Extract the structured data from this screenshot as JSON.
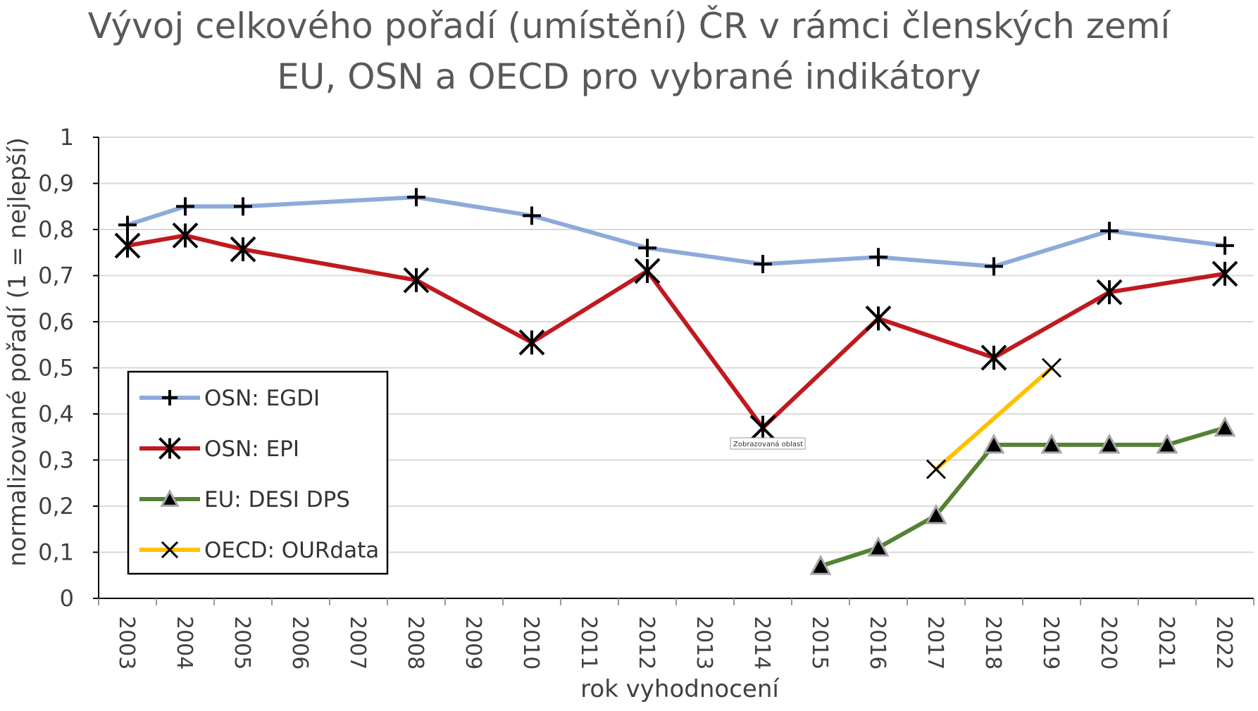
{
  "chart_data": {
    "type": "line",
    "title_line1": "Vývoj celkového pořadí (umístění) ČR v rámci členských zemí",
    "title_line2": "EU, OSN a OECD pro vybrané indikátory",
    "xlabel": "rok vyhodnocení",
    "ylabel": "normalizované pořadí (1 = nejlepší)",
    "categories": [
      "2003",
      "2004",
      "2005",
      "2006",
      "2007",
      "2008",
      "2009",
      "2010",
      "2011",
      "2012",
      "2013",
      "2014",
      "2015",
      "2016",
      "2017",
      "2018",
      "2019",
      "2020",
      "2021",
      "2022"
    ],
    "ylim": [
      0,
      1
    ],
    "yticks": [
      0,
      0.1,
      0.2,
      0.3,
      0.4,
      0.5,
      0.6,
      0.7,
      0.8,
      0.9,
      1
    ],
    "ytick_labels": [
      "0",
      "0,1",
      "0,2",
      "0,3",
      "0,4",
      "0,5",
      "0,6",
      "0,7",
      "0,8",
      "0,9",
      "1"
    ],
    "grid": true,
    "legend_position": "left",
    "series": [
      {
        "name": "OSN: EGDI",
        "color": "#8eaadb",
        "marker": "plus",
        "points": [
          [
            "2003",
            0.81
          ],
          [
            "2004",
            0.85
          ],
          [
            "2005",
            0.85
          ],
          [
            "2008",
            0.87
          ],
          [
            "2010",
            0.83
          ],
          [
            "2012",
            0.76
          ],
          [
            "2014",
            0.725
          ],
          [
            "2016",
            0.74
          ],
          [
            "2018",
            0.72
          ],
          [
            "2020",
            0.797
          ],
          [
            "2022",
            0.765
          ]
        ]
      },
      {
        "name": "OSN: EPI",
        "color": "#c0191f",
        "marker": "asterisk",
        "points": [
          [
            "2003",
            0.765
          ],
          [
            "2004",
            0.787
          ],
          [
            "2005",
            0.757
          ],
          [
            "2008",
            0.69
          ],
          [
            "2010",
            0.555
          ],
          [
            "2012",
            0.71
          ],
          [
            "2014",
            0.37
          ],
          [
            "2016",
            0.607
          ],
          [
            "2018",
            0.522
          ],
          [
            "2020",
            0.664
          ],
          [
            "2022",
            0.704
          ]
        ]
      },
      {
        "name": "EU: DESI DPS",
        "color": "#548235",
        "marker": "triangle",
        "points": [
          [
            "2015",
            0.07
          ],
          [
            "2016",
            0.11
          ],
          [
            "2017",
            0.18
          ],
          [
            "2018",
            0.333
          ],
          [
            "2019",
            0.333
          ],
          [
            "2020",
            0.333
          ],
          [
            "2021",
            0.333
          ],
          [
            "2022",
            0.37
          ]
        ]
      },
      {
        "name": "OECD: OURdata",
        "color": "#ffc000",
        "marker": "x",
        "points": [
          [
            "2017",
            0.28
          ],
          [
            "2019",
            0.5
          ]
        ]
      }
    ],
    "annotation": "Zobrazovaná oblast"
  }
}
